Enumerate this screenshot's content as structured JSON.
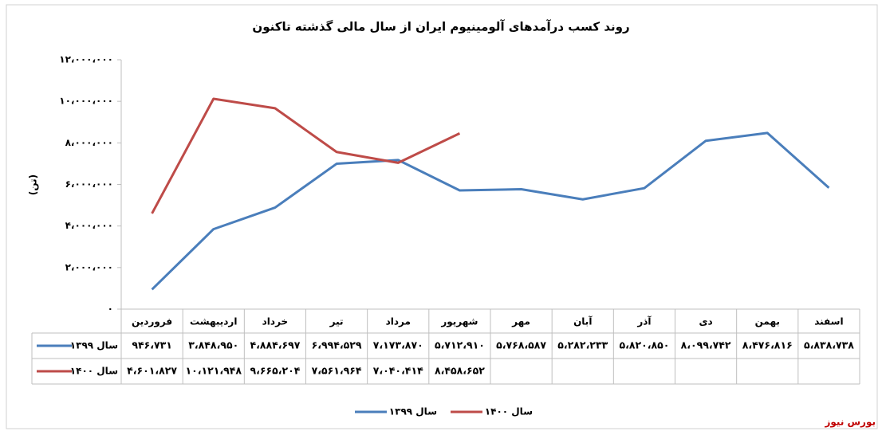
{
  "chart_data": {
    "type": "line",
    "title": "روند کسب درآمدهای آلومینیوم ایران از سال مالی گذشته تاکنون",
    "y_label": "(تن)",
    "categories": [
      "فروردین",
      "اردیبهشت",
      "خرداد",
      "تیر",
      "مرداد",
      "شهریور",
      "مهر",
      "آبان",
      "آذر",
      "دی",
      "بهمن",
      "اسفند"
    ],
    "series": [
      {
        "name": "سال ۱۳۹۹",
        "color": "#4a7ebb",
        "values": [
          946731,
          3848950,
          4884697,
          6994529,
          7173870,
          5712910,
          5768587,
          5282233,
          5820850,
          8099742,
          8476816,
          5838738
        ],
        "value_labels": [
          "۹۴۶،۷۳۱",
          "۳،۸۴۸،۹۵۰",
          "۴،۸۸۴،۶۹۷",
          "۶،۹۹۴،۵۲۹",
          "۷،۱۷۳،۸۷۰",
          "۵،۷۱۲،۹۱۰",
          "۵،۷۶۸،۵۸۷",
          "۵،۲۸۲،۲۳۳",
          "۵،۸۲۰،۸۵۰",
          "۸،۰۹۹،۷۴۲",
          "۸،۴۷۶،۸۱۶",
          "۵،۸۳۸،۷۳۸"
        ]
      },
      {
        "name": "سال ۱۴۰۰",
        "color": "#be4b48",
        "values": [
          4601827,
          10121948,
          9665204,
          7561964,
          7040414,
          8458652,
          null,
          null,
          null,
          null,
          null,
          null
        ],
        "value_labels": [
          "۴،۶۰۱،۸۲۷",
          "۱۰،۱۲۱،۹۴۸",
          "۹،۶۶۵،۲۰۴",
          "۷،۵۶۱،۹۶۴",
          "۷،۰۴۰،۴۱۴",
          "۸،۴۵۸،۶۵۲",
          null,
          null,
          null,
          null,
          null,
          null
        ]
      }
    ],
    "ylim": [
      0,
      12000000
    ],
    "yticks": [
      {
        "value": 0,
        "label": "۰"
      },
      {
        "value": 2000000,
        "label": "۲،۰۰۰،۰۰۰"
      },
      {
        "value": 4000000,
        "label": "۴،۰۰۰،۰۰۰"
      },
      {
        "value": 6000000,
        "label": "۶،۰۰۰،۰۰۰"
      },
      {
        "value": 8000000,
        "label": "۸،۰۰۰،۰۰۰"
      },
      {
        "value": 10000000,
        "label": "۱۰،۰۰۰،۰۰۰"
      },
      {
        "value": 12000000,
        "label": "۱۲،۰۰۰،۰۰۰"
      }
    ],
    "grid": false,
    "legend": "bottom",
    "source": "بورس نیوز"
  }
}
